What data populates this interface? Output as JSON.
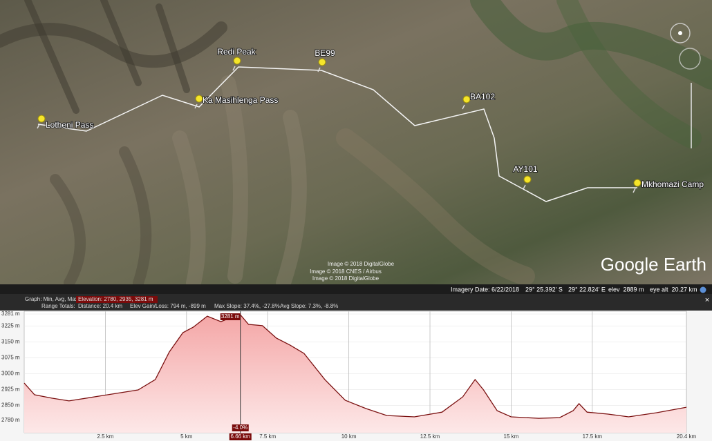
{
  "map": {
    "placemarks": [
      {
        "label": "Lotheni Pass"
      },
      {
        "label": "Ka Masihlenga Pass"
      },
      {
        "label": "Redi Peak"
      },
      {
        "label": "BE99"
      },
      {
        "label": "BA102"
      },
      {
        "label": "AY101"
      },
      {
        "label": "Mkhomazi Camp"
      }
    ],
    "attribution": [
      "Image © 2018 DigitalGlobe",
      "Image © 2018 CNES / Airbus",
      "Image © 2018 DigitalGlobe"
    ],
    "logo": "Google Earth"
  },
  "status_bar": {
    "imagery_date": "Imagery Date: 6/22/2018",
    "lat": "29° 25.392' S",
    "lon": "29° 22.824' E",
    "elev": "elev  2889 m",
    "eye_alt": "eye alt  20.27 km"
  },
  "profile": {
    "graph_label": "Graph: Min, Avg, Max",
    "elevation": "Elevation: 2780, 2935, 3281 m",
    "range_label": "Range Totals:",
    "distance": "Distance: 20.4 km",
    "gain_loss": "Elev Gain/Loss: 794 m, -899 m",
    "max_slope": "Max Slope: 37.4%, -27.8%",
    "avg_slope": "Avg Slope: 7.3%, -8.8%",
    "close": "×",
    "xlim": [
      0,
      20.4
    ],
    "ylim": [
      2721,
      3294
    ],
    "yticks": [
      {
        "value": 3281,
        "label": "3281 m"
      },
      {
        "value": 3225,
        "label": "3225 m"
      },
      {
        "value": 3150,
        "label": "3150 m"
      },
      {
        "value": 3075,
        "label": "3075 m"
      },
      {
        "value": 3000,
        "label": "3000 m"
      },
      {
        "value": 2925,
        "label": "2925 m"
      },
      {
        "value": 2850,
        "label": "2850 m"
      },
      {
        "value": 2780,
        "label": "2780 m"
      }
    ],
    "xticks": [
      {
        "value": 2.5,
        "label": "2.5 km"
      },
      {
        "value": 5,
        "label": "5 km"
      },
      {
        "value": 7.5,
        "label": "7.5 km"
      },
      {
        "value": 10,
        "label": "10 km"
      },
      {
        "value": 12.5,
        "label": "12.5 km"
      },
      {
        "value": 15,
        "label": "15 km"
      },
      {
        "value": 17.5,
        "label": "17.5 km"
      },
      {
        "value": 20.4,
        "label": "20.4 km"
      }
    ],
    "x": [
      0,
      0.32,
      0.85,
      1.38,
      2.45,
      3.51,
      4.04,
      4.47,
      4.89,
      5.21,
      5.64,
      6.06,
      6.64,
      6.91,
      7.34,
      7.77,
      8.19,
      8.62,
      9.26,
      9.89,
      10.53,
      11.17,
      12.02,
      12.87,
      13.51,
      13.89,
      14.15,
      14.57,
      15.0,
      15.85,
      16.49,
      16.91,
      17.09,
      17.34,
      17.98,
      18.62,
      19.47,
      20.4
    ],
    "values": [
      2955,
      2900,
      2884,
      2871,
      2897,
      2923,
      2972,
      3102,
      3193,
      3219,
      3271,
      3245,
      3281,
      3232,
      3226,
      3167,
      3134,
      3095,
      2972,
      2874,
      2835,
      2802,
      2796,
      2818,
      2890,
      2972,
      2923,
      2825,
      2796,
      2789,
      2792,
      2825,
      2858,
      2818,
      2809,
      2796,
      2815,
      2841
    ],
    "cursor": {
      "x": {
        "value": 6.66,
        "label": "6.66 km"
      },
      "elevation": {
        "value": 3281,
        "label": "3281 m"
      },
      "slope": "-4.0%"
    }
  }
}
